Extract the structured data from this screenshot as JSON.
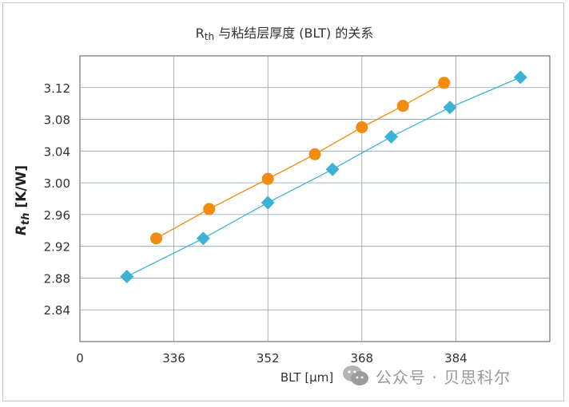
{
  "chart_data": {
    "type": "scatter",
    "title_prefix": "R",
    "title_sub": "th",
    "title_rest": " 与粘结层厚度 (BLT) 的关系",
    "xlabel": "BLT [μm]",
    "ylabel_main": "R",
    "ylabel_sub": "th",
    "ylabel_unit": " [K/W]",
    "x_ticks": [
      336,
      352,
      368,
      384
    ],
    "x_origin_label": "0",
    "y_ticks": [
      2.84,
      2.88,
      2.92,
      2.96,
      3.0,
      3.04,
      3.08,
      3.12
    ],
    "y_tick_labels": [
      "2.84",
      "2.88",
      "2.92",
      "2.96",
      "3.00",
      "3.04",
      "3.08",
      "3.12"
    ],
    "xlim": [
      320,
      400
    ],
    "ylim": [
      2.8,
      3.16
    ],
    "grid": true,
    "series": [
      {
        "marker": "circle",
        "color": "#F28C0F",
        "x": [
          333,
          342,
          352,
          360,
          368,
          375,
          382
        ],
        "y": [
          2.93,
          2.967,
          3.005,
          3.036,
          3.07,
          3.097,
          3.126
        ]
      },
      {
        "marker": "diamond",
        "color": "#3CB3D6",
        "x": [
          328,
          341,
          352,
          363,
          373,
          383,
          395
        ],
        "y": [
          2.882,
          2.93,
          2.975,
          3.017,
          3.058,
          3.095,
          3.133
        ]
      }
    ]
  },
  "watermark": {
    "text": "公众号 · 贝思科尔",
    "icon": "wechat-icon"
  }
}
